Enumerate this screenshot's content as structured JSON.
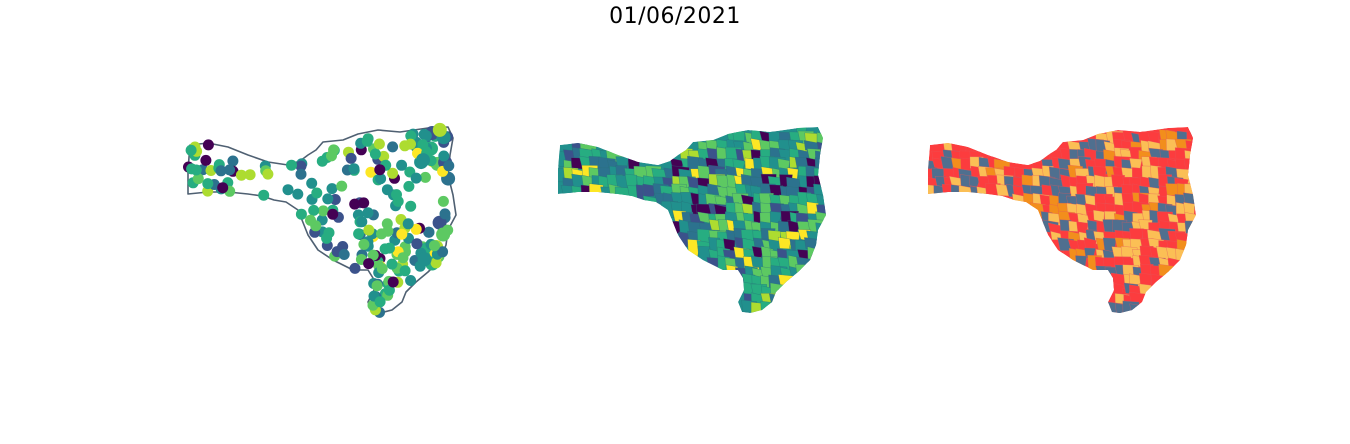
{
  "title": "01/06/2021",
  "maps": [
    {
      "name": "points",
      "style": "outline-with-dots"
    },
    {
      "name": "choropleth",
      "style": "continuous"
    },
    {
      "name": "classes",
      "style": "categorical"
    }
  ],
  "palette": {
    "viridis": [
      "#440154",
      "#3b528b",
      "#2c728e",
      "#21908d",
      "#27ad81",
      "#5dc962",
      "#addc30",
      "#fde725"
    ],
    "classes": [
      "#fc3c3e",
      "#fbbf55",
      "#f28e1c",
      "#4f6f8f"
    ],
    "outline": "#4f6072",
    "background": "#ffffff"
  }
}
